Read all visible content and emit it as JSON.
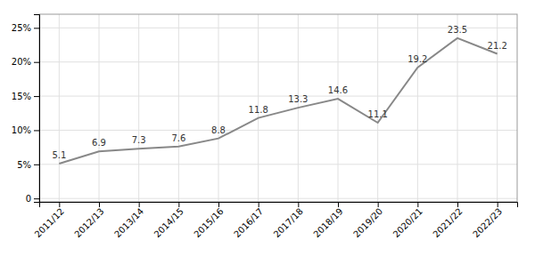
{
  "chart_data": {
    "type": "line",
    "categories": [
      "2011/12",
      "2012/13",
      "2013/14",
      "2014/15",
      "2015/16",
      "2016/17",
      "2017/18",
      "2018/19",
      "2019/20",
      "2020/21",
      "2021/22",
      "2022/23"
    ],
    "values": [
      5.1,
      6.9,
      7.3,
      7.6,
      8.8,
      11.8,
      13.3,
      14.6,
      11.1,
      19.2,
      23.5,
      21.2
    ],
    "color": "#888888",
    "ylim": [
      -0.5,
      27
    ],
    "yticks": [
      0,
      {
        "value": 5,
        "label": "5%"
      },
      {
        "value": 10,
        "label": "10%"
      },
      {
        "value": 15,
        "label": "15%"
      },
      {
        "value": 20,
        "label": "20%"
      },
      {
        "value": 25,
        "label": "25%"
      }
    ],
    "grid": true,
    "data_labels": true
  }
}
